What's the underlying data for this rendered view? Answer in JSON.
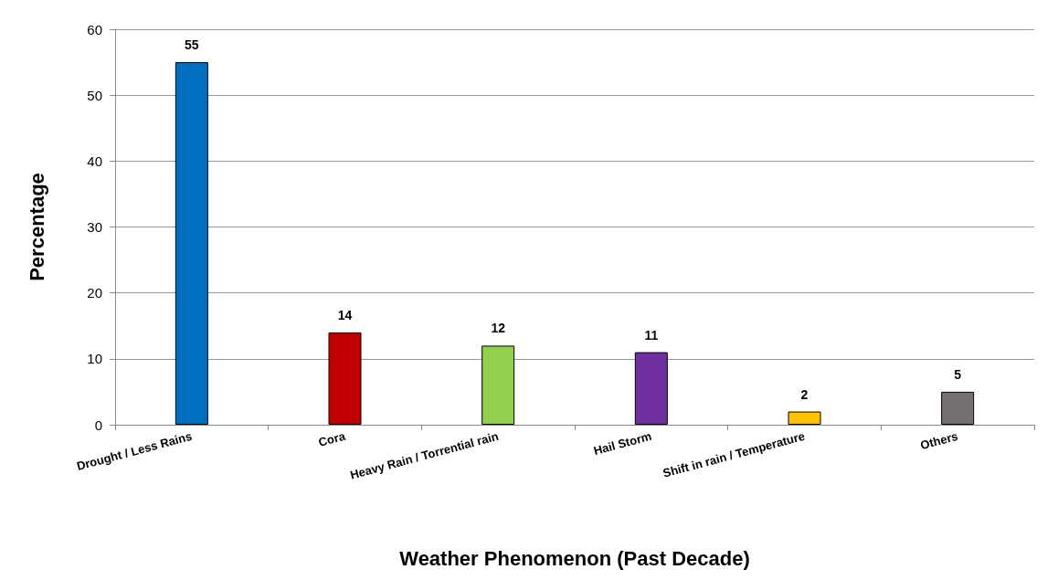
{
  "chart_data": {
    "type": "bar",
    "xlabel": "Weather Phenomenon (Past Decade)",
    "ylabel": "Percentage",
    "categories": [
      "Drought / Less Rains",
      "Cora",
      "Heavy Rain / Torrential rain",
      "Hail Storm",
      "Shift in rain / Temperature",
      "Others"
    ],
    "values": [
      55,
      14,
      12,
      11,
      2,
      5
    ],
    "colors": [
      "#0070c0",
      "#c00000",
      "#92d050",
      "#7030a0",
      "#ffc000",
      "#767171"
    ],
    "ylim": [
      0,
      60
    ],
    "yticks": [
      0,
      10,
      20,
      30,
      40,
      50,
      60
    ],
    "grid": "y",
    "data_labels": true
  }
}
